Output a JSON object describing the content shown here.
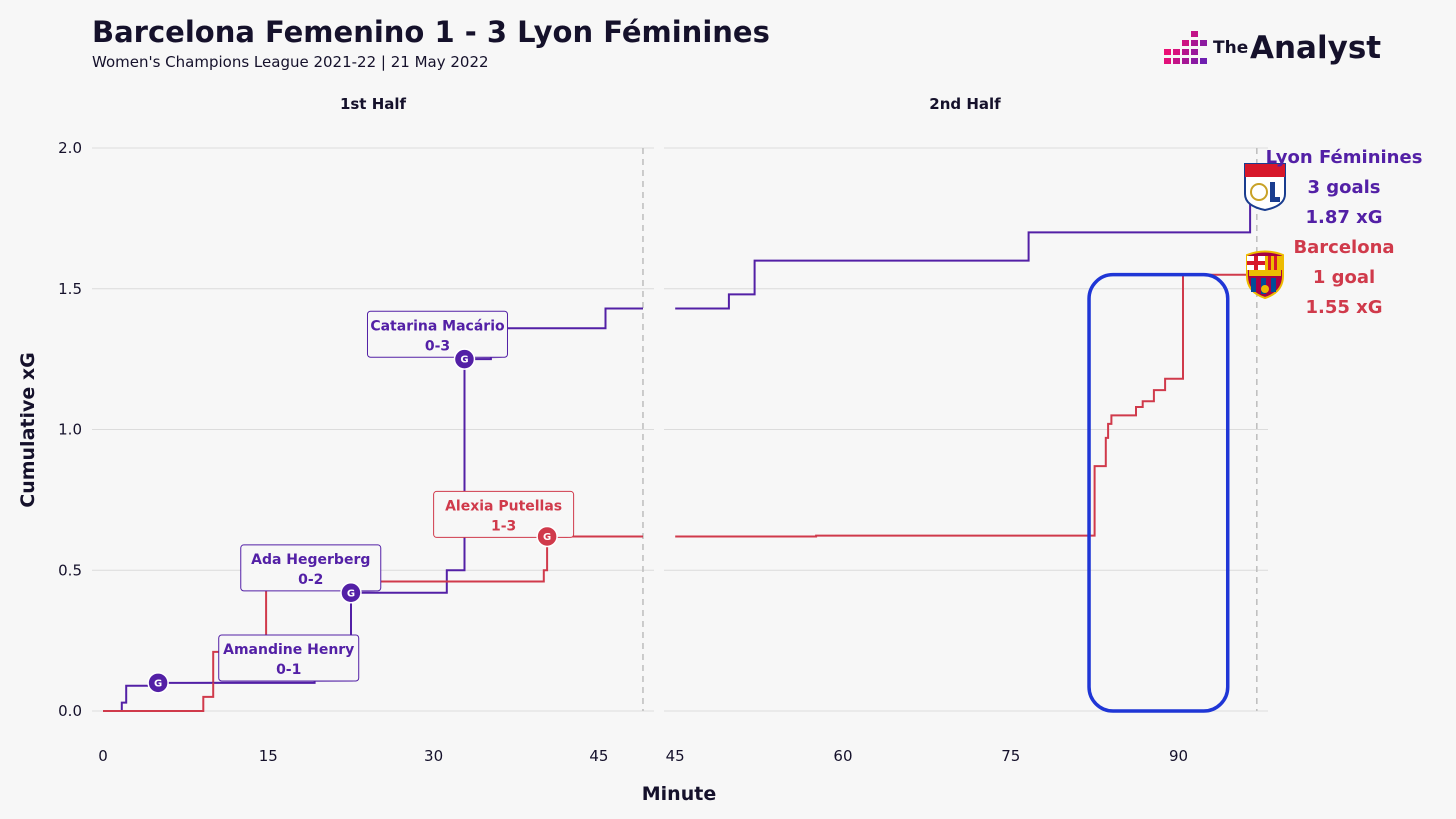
{
  "header": {
    "title": "Barcelona Femenino 1 - 3 Lyon Féminines",
    "subtitle": "Women's Champions League 2021-22 | 21 May 2022",
    "brand_small": "The",
    "brand_large": "Analyst"
  },
  "colors": {
    "lyon": "#5320a6",
    "barcelona": "#d03a4b",
    "highlight": "#1f36d6",
    "grid": "#dcdcdc",
    "text": "#15112b"
  },
  "chart_data": {
    "type": "line",
    "step": true,
    "xlabel": "Minute",
    "ylabel": "Cumulative xG",
    "ylim": [
      0,
      2
    ],
    "yticks": [
      0,
      0.5,
      1,
      1.5,
      2
    ],
    "ytick_labels": [
      "0.0",
      "0.5",
      "1.0",
      "1.5",
      "2.0"
    ],
    "panels": [
      {
        "title": "1st Half",
        "xlim": [
          -1,
          50
        ],
        "xticks": [
          0,
          15,
          30,
          45
        ],
        "end_minute": 49,
        "series": [
          {
            "team": "lyon",
            "points": [
              [
                0,
                0
              ],
              [
                1.7,
                0
              ],
              [
                1.7,
                0.03
              ],
              [
                2.1,
                0.03
              ],
              [
                2.1,
                0.09
              ],
              [
                5,
                0.09
              ],
              [
                5,
                0.1
              ],
              [
                19.2,
                0.1
              ],
              [
                19.2,
                0.14
              ],
              [
                22.5,
                0.14
              ],
              [
                22.5,
                0.42
              ],
              [
                31.2,
                0.42
              ],
              [
                31.2,
                0.5
              ],
              [
                32.8,
                0.5
              ],
              [
                32.8,
                1.25
              ],
              [
                35.2,
                1.25
              ],
              [
                35.2,
                1.36
              ],
              [
                45.6,
                1.36
              ],
              [
                45.6,
                1.43
              ],
              [
                49,
                1.43
              ]
            ]
          },
          {
            "team": "barcelona",
            "points": [
              [
                0,
                0
              ],
              [
                9.1,
                0
              ],
              [
                9.1,
                0.05
              ],
              [
                10,
                0.05
              ],
              [
                10,
                0.21
              ],
              [
                14.8,
                0.21
              ],
              [
                14.8,
                0.46
              ],
              [
                40,
                0.46
              ],
              [
                40,
                0.5
              ],
              [
                40.3,
                0.5
              ],
              [
                40.3,
                0.62
              ],
              [
                49,
                0.62
              ]
            ]
          }
        ],
        "goals": [
          {
            "team": "lyon",
            "minute": 5,
            "xg": 0.1,
            "symbol": "G",
            "scorer": "Amandine Henry",
            "score": "0-1",
            "label_at": [
              10.5,
              0.27
            ]
          },
          {
            "team": "lyon",
            "minute": 22.5,
            "xg": 0.42,
            "symbol": "G",
            "scorer": "Ada Hegerberg",
            "score": "0-2",
            "label_at": [
              12.5,
              0.59
            ]
          },
          {
            "team": "lyon",
            "minute": 32.8,
            "xg": 1.25,
            "symbol": "G",
            "scorer": "Catarina Macário",
            "score": "0-3",
            "label_at": [
              24,
              1.42
            ]
          },
          {
            "team": "barcelona",
            "minute": 40.3,
            "xg": 0.62,
            "symbol": "G",
            "scorer": "Alexia Putellas",
            "score": "1-3",
            "label_at": [
              30,
              0.78
            ]
          }
        ]
      },
      {
        "title": "2nd Half",
        "xlim": [
          44,
          98
        ],
        "xticks": [
          45,
          60,
          75,
          90
        ],
        "end_minute": 97,
        "series": [
          {
            "team": "lyon",
            "points": [
              [
                45,
                1.43
              ],
              [
                49.8,
                1.43
              ],
              [
                49.8,
                1.48
              ],
              [
                52.1,
                1.48
              ],
              [
                52.1,
                1.6
              ],
              [
                76.6,
                1.6
              ],
              [
                76.6,
                1.7
              ],
              [
                96.4,
                1.7
              ],
              [
                96.4,
                1.87
              ],
              [
                97,
                1.87
              ]
            ]
          },
          {
            "team": "barcelona",
            "points": [
              [
                45,
                0.62
              ],
              [
                57.6,
                0.62
              ],
              [
                57.6,
                0.623
              ],
              [
                82.5,
                0.623
              ],
              [
                82.5,
                0.87
              ],
              [
                83.5,
                0.87
              ],
              [
                83.5,
                0.97
              ],
              [
                83.7,
                0.97
              ],
              [
                83.7,
                1.02
              ],
              [
                84,
                1.02
              ],
              [
                84,
                1.05
              ],
              [
                86.2,
                1.05
              ],
              [
                86.2,
                1.08
              ],
              [
                86.8,
                1.08
              ],
              [
                86.8,
                1.1
              ],
              [
                87.8,
                1.1
              ],
              [
                87.8,
                1.14
              ],
              [
                88.8,
                1.14
              ],
              [
                88.8,
                1.18
              ],
              [
                90.4,
                1.18
              ],
              [
                90.4,
                1.55
              ],
              [
                97,
                1.55
              ]
            ]
          }
        ],
        "highlight": {
          "x0": 82,
          "x1": 94.4,
          "y0": 0,
          "y1": 1.55
        }
      }
    ],
    "legend": [
      {
        "team": "lyon",
        "name": "Lyon Féminines",
        "goals": "3 goals",
        "xg": "1.87 xG"
      },
      {
        "team": "barcelona",
        "name": "Barcelona",
        "goals": "1 goal",
        "xg": "1.55 xG"
      }
    ]
  }
}
